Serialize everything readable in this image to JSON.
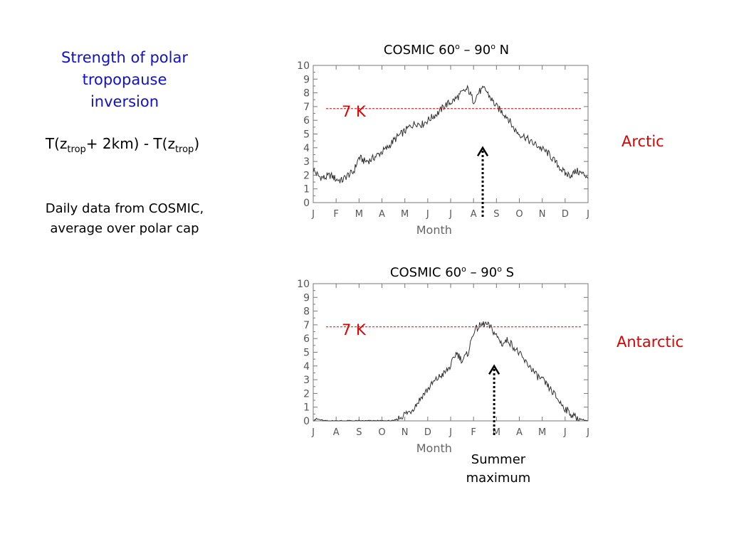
{
  "left_panel": {
    "title_lines": [
      "Strength of polar",
      "tropopause",
      "inversion"
    ],
    "formula": {
      "a": "T(z",
      "sub1": "trop",
      "b": "+ 2km) - T(z",
      "sub2": "trop",
      "c": ")"
    },
    "note_lines": [
      "Daily data from COSMIC,",
      "average over polar cap"
    ]
  },
  "labels": {
    "arctic": "Arctic",
    "antarctic": "Antarctic",
    "summer_lines": [
      "Summer",
      "maximum"
    ]
  },
  "colors": {
    "region": "#e00000",
    "left_title": "#1010d0",
    "threshold_line": "#e00000",
    "series": "#303030"
  },
  "chart_data": [
    {
      "type": "line",
      "title_parts": {
        "a": "COSMIC  60",
        "sup1": "o",
        "b": " – 90",
        "sup2": "o",
        "c": " N"
      },
      "xlabel": "Month",
      "months": [
        "J",
        "F",
        "M",
        "A",
        "M",
        "J",
        "J",
        "A",
        "S",
        "O",
        "N",
        "D",
        "J"
      ],
      "ylim": [
        0,
        10
      ],
      "yticks": [
        "0",
        "1",
        "2",
        "3",
        "4",
        "5",
        "6",
        "7",
        "8",
        "9",
        "10"
      ],
      "threshold": {
        "value": 6.85,
        "label": "7 K"
      },
      "arrow_month": 7.4,
      "series": [
        {
          "x": [
            0,
            0.25,
            0.5,
            0.75,
            1,
            1.25,
            1.5,
            1.75,
            2,
            2.25,
            2.5,
            2.75,
            3,
            3.25,
            3.5,
            3.75,
            4,
            4.25,
            4.5,
            4.75,
            5,
            5.25,
            5.5,
            5.75,
            6,
            6.25,
            6.5,
            6.75,
            7,
            7.25,
            7.5,
            7.75,
            8,
            8.25,
            8.5,
            8.75,
            9,
            9.25,
            9.5,
            9.75,
            10,
            10.25,
            10.5,
            10.75,
            11,
            11.25,
            11.5,
            11.75,
            12
          ],
          "values": [
            2.4,
            1.9,
            1.8,
            2.0,
            1.7,
            1.6,
            2.0,
            2.2,
            3.3,
            3.0,
            3.1,
            3.4,
            3.7,
            4.0,
            4.5,
            4.9,
            5.2,
            5.6,
            5.8,
            5.7,
            6.0,
            6.3,
            6.6,
            7.1,
            7.3,
            7.6,
            8.0,
            8.3,
            7.4,
            8.1,
            8.3,
            7.6,
            7.0,
            6.6,
            6.2,
            5.4,
            5.0,
            4.8,
            4.4,
            4.2,
            3.9,
            3.6,
            3.1,
            2.6,
            2.1,
            2.0,
            2.3,
            2.1,
            1.9
          ]
        }
      ]
    },
    {
      "type": "line",
      "title_parts": {
        "a": "COSMIC  60",
        "sup1": "o",
        "b": " – 90",
        "sup2": "o",
        "c": " S"
      },
      "xlabel": "Month",
      "months": [
        "J",
        "A",
        "S",
        "O",
        "N",
        "D",
        "J",
        "F",
        "M",
        "A",
        "M",
        "J",
        "J"
      ],
      "ylim": [
        0,
        10
      ],
      "yticks": [
        "0",
        "1",
        "2",
        "3",
        "4",
        "5",
        "6",
        "7",
        "8",
        "9",
        "10"
      ],
      "threshold": {
        "value": 6.85,
        "label": "7 K"
      },
      "arrow_month": 7.9,
      "series": [
        {
          "x": [
            0,
            0.25,
            0.5,
            0.75,
            1,
            1.5,
            2,
            2.5,
            3,
            3.5,
            3.75,
            4,
            4.25,
            4.5,
            4.75,
            5,
            5.25,
            5.5,
            5.75,
            6,
            6.25,
            6.5,
            6.75,
            7,
            7.25,
            7.5,
            7.75,
            8,
            8.25,
            8.5,
            8.75,
            9,
            9.25,
            9.5,
            9.75,
            10,
            10.25,
            10.5,
            10.75,
            11,
            11.25,
            11.5,
            11.75,
            12
          ],
          "values": [
            0.2,
            0.1,
            0.0,
            0.0,
            0.0,
            0.0,
            0.0,
            0.0,
            0.0,
            0.0,
            0.2,
            0.5,
            0.7,
            1.2,
            1.8,
            2.3,
            2.8,
            3.2,
            3.5,
            4.0,
            5.0,
            4.4,
            4.9,
            6.5,
            6.9,
            7.1,
            6.8,
            6.2,
            5.6,
            5.9,
            5.4,
            4.9,
            4.3,
            3.9,
            3.3,
            3.0,
            2.5,
            2.0,
            1.4,
            0.9,
            0.5,
            0.2,
            0.1,
            0.0
          ]
        }
      ]
    }
  ]
}
